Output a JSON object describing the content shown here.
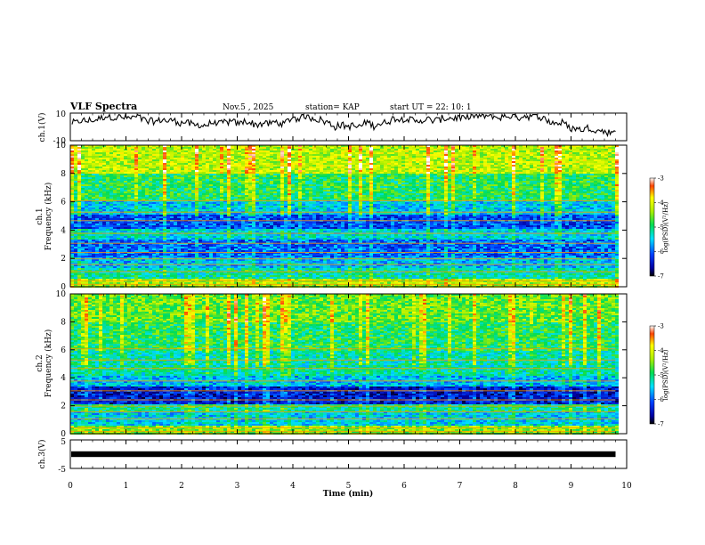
{
  "header": {
    "title": "VLF Spectra",
    "date": "Nov.5 , 2025",
    "station": "station= KAP",
    "start": "start UT = 22: 10: 1"
  },
  "chart_data": [
    {
      "type": "line",
      "name": "ch1-waveform",
      "ylabel": "ch.1(V)",
      "ylim": [
        -10,
        10
      ],
      "yticks": [
        "10",
        "-10"
      ],
      "series": [
        {
          "name": "ch.1",
          "x_range_min": [
            0,
            9.8
          ],
          "approx_level": 2.5
        }
      ]
    },
    {
      "type": "heatmap",
      "name": "ch1-spectrogram",
      "ylabel_top": "ch.1",
      "ylabel": "Frequency (kHz)",
      "ylim": [
        0,
        10
      ],
      "yticks": [
        "0",
        "2",
        "4",
        "6",
        "8",
        "10"
      ],
      "colorbar": {
        "label": "log(PSD)(V²/Hz)",
        "range": [
          -7,
          -3
        ],
        "ticks": [
          "-3",
          "-4",
          "-5",
          "-6",
          "-7"
        ]
      },
      "band_levels": [
        {
          "f": [
            0,
            0.6
          ],
          "logpsd": -4.3
        },
        {
          "f": [
            0.6,
            1.4
          ],
          "logpsd": -5.2
        },
        {
          "f": [
            1.4,
            2.2
          ],
          "logpsd": -5.6
        },
        {
          "f": [
            2.2,
            3.4
          ],
          "logpsd": -6.0
        },
        {
          "f": [
            3.4,
            4.2
          ],
          "logpsd": -5.4
        },
        {
          "f": [
            4.2,
            5.2
          ],
          "logpsd": -6.1
        },
        {
          "f": [
            5.2,
            6.2
          ],
          "logpsd": -5.5
        },
        {
          "f": [
            6.2,
            8.0
          ],
          "logpsd": -4.9
        },
        {
          "f": [
            8.0,
            10
          ],
          "logpsd": -4.2
        }
      ]
    },
    {
      "type": "heatmap",
      "name": "ch2-spectrogram",
      "ylabel_top": "ch.2",
      "ylabel": "Frequency (kHz)",
      "ylim": [
        0,
        10
      ],
      "yticks": [
        "0",
        "2",
        "4",
        "6",
        "8",
        "10"
      ],
      "colorbar": {
        "label": "log(PSD)(V²/Hz)",
        "range": [
          -7,
          -3
        ],
        "ticks": [
          "-3",
          "-4",
          "-5",
          "-6",
          "-7"
        ]
      },
      "band_levels": [
        {
          "f": [
            0,
            0.6
          ],
          "logpsd": -4.5
        },
        {
          "f": [
            0.6,
            1.6
          ],
          "logpsd": -5.5
        },
        {
          "f": [
            1.6,
            2.2
          ],
          "logpsd": -5.1
        },
        {
          "f": [
            2.2,
            3.4
          ],
          "logpsd": -6.4
        },
        {
          "f": [
            3.4,
            4.2
          ],
          "logpsd": -5.6
        },
        {
          "f": [
            4.2,
            6.0
          ],
          "logpsd": -5.2
        },
        {
          "f": [
            6.0,
            8.0
          ],
          "logpsd": -4.9
        },
        {
          "f": [
            8.0,
            10
          ],
          "logpsd": -4.6
        }
      ]
    },
    {
      "type": "line",
      "name": "ch3-waveform",
      "ylabel": "ch.3(V)",
      "ylim": [
        -5,
        5
      ],
      "yticks": [
        "5",
        "-5"
      ],
      "series": [
        {
          "name": "ch.3",
          "level": 0,
          "amplitude": 1
        }
      ]
    }
  ],
  "xaxis": {
    "label": "Time (min)",
    "range": [
      0,
      10
    ],
    "ticks": [
      "0",
      "1",
      "2",
      "3",
      "4",
      "5",
      "6",
      "7",
      "8",
      "9",
      "10"
    ],
    "data_end": 9.8
  }
}
